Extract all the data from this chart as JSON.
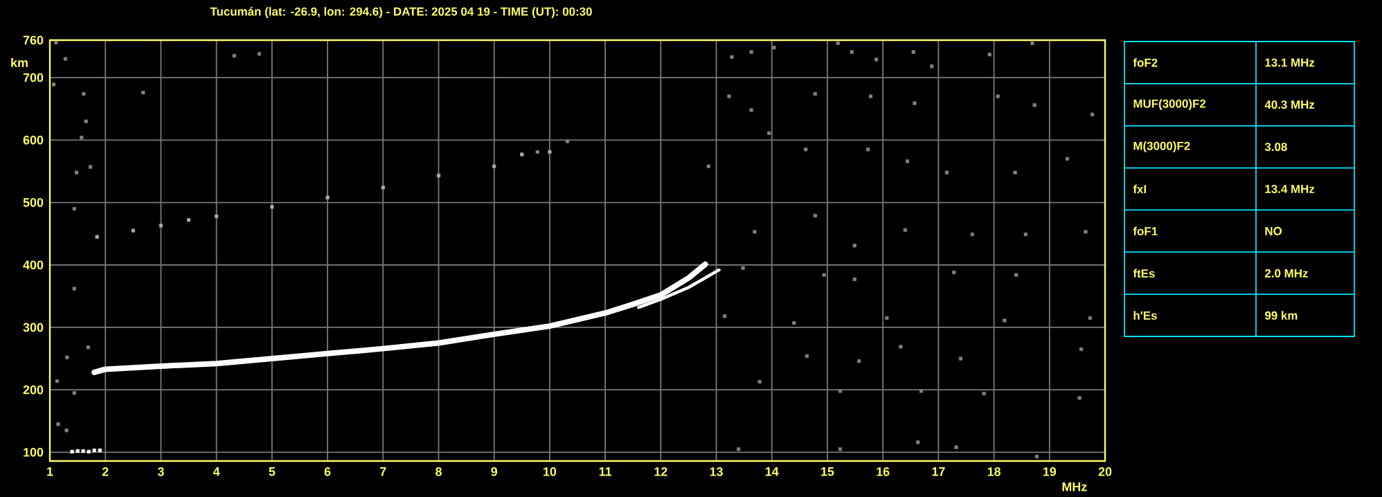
{
  "chart_data": [
    {
      "type": "scatter",
      "title": "Tucumán (lat: -26.9, lon: 294.6) - DATE: 2025 04 19 - TIME (UT): 00:30",
      "xlabel": "MHz",
      "ylabel": "km",
      "xlim": [
        1,
        20
      ],
      "ylim": [
        86,
        760
      ],
      "xticks": [
        1,
        2,
        3,
        4,
        5,
        6,
        7,
        8,
        9,
        10,
        11,
        12,
        13,
        14,
        15,
        16,
        17,
        18,
        19,
        20
      ],
      "yticks": [
        100,
        200,
        300,
        400,
        500,
        600,
        700,
        760
      ],
      "grid": true,
      "series": [
        {
          "type": "line",
          "color": "#ffffff",
          "x": [
            1.8,
            2,
            3,
            4,
            5,
            6,
            7,
            8,
            9,
            10,
            11,
            11.5,
            12,
            12.5,
            12.8
          ],
          "values": [
            228,
            233,
            238,
            242,
            250,
            258,
            266,
            275,
            289,
            302,
            323,
            337,
            352,
            379,
            401
          ]
        },
        {
          "type": "line",
          "color": "#ffffff",
          "x": [
            11.6,
            12,
            12.5,
            13.05
          ],
          "values": [
            332,
            345,
            364,
            392
          ]
        },
        {
          "type": "scatter",
          "marker": "square",
          "color": "#aaaaaa",
          "x": [
            1.85,
            2.5,
            3,
            3.5,
            4,
            5,
            6,
            7,
            8,
            9,
            9.5,
            10
          ],
          "values": [
            445,
            455,
            463,
            472,
            478,
            493,
            508,
            524,
            543,
            558,
            577,
            581
          ]
        },
        {
          "type": "scatter",
          "marker": "square",
          "color": "#ffffff",
          "x": [
            1.4,
            1.5,
            1.6,
            1.7,
            1.8,
            1.9
          ],
          "values": [
            101,
            102,
            102,
            101,
            103,
            103
          ]
        },
        {
          "type": "scatter",
          "marker": "square",
          "color": "#808080",
          "x": [
            13.28,
            13.63,
            14.04,
            15.19,
            15.44,
            15.88,
            16.55,
            16.88,
            17.92,
            18.69,
            13.23,
            13.63,
            13.95,
            14.78,
            15.78,
            16.57,
            18.07,
            18.73,
            19.77,
            12.86,
            14.61,
            15.73,
            16.44,
            17.15,
            18.38,
            19.32,
            13.69,
            14.78,
            15.49,
            16.4,
            17.61,
            18.57,
            19.65,
            13.48,
            14.94,
            15.49,
            17.28,
            18.4,
            13.15,
            14.4,
            16.07,
            18.19,
            19.73,
            14.63,
            15.57,
            16.32,
            17.4,
            19.57,
            13.78,
            15.23,
            16.69,
            17.82,
            19.54,
            13.4,
            15.23,
            16.63,
            18.77,
            17.32,
            1.11,
            1.07,
            1.28,
            1.61,
            1.65,
            1.57,
            1.73,
            1.48,
            1.44,
            4.32,
            4.77,
            2.68,
            10.32,
            9.78,
            1.44,
            1.13,
            1.31,
            1.44,
            1.15,
            1.3,
            1.69
          ],
          "values": [
            733,
            741,
            748,
            755,
            741,
            729,
            741,
            718,
            737,
            755,
            670,
            648,
            611,
            674,
            670,
            659,
            670,
            656,
            641,
            558,
            585,
            585,
            566,
            548,
            548,
            570,
            453,
            479,
            431,
            456,
            449,
            449,
            453,
            395,
            384,
            377,
            388,
            384,
            318,
            307,
            315,
            311,
            315,
            254,
            246,
            269,
            250,
            265,
            213,
            198,
            198,
            194,
            187,
            105,
            105,
            116,
            93,
            108,
            756,
            689,
            730,
            674,
            630,
            604,
            557,
            548,
            490,
            735,
            738,
            676,
            598,
            581,
            362,
            214,
            252,
            195,
            145,
            135,
            268
          ]
        }
      ]
    },
    {
      "type": "other",
      "annotations": [
        "foF2",
        "13.1 MHz",
        "MUF(3000)F2",
        "40.3 MHz",
        "M(3000)F2",
        "3.08",
        "fxI",
        "13.4 MHz",
        "foF1",
        "NO",
        "ftEs",
        "2.0 MHz",
        "h'Es",
        "99 km"
      ]
    }
  ]
}
